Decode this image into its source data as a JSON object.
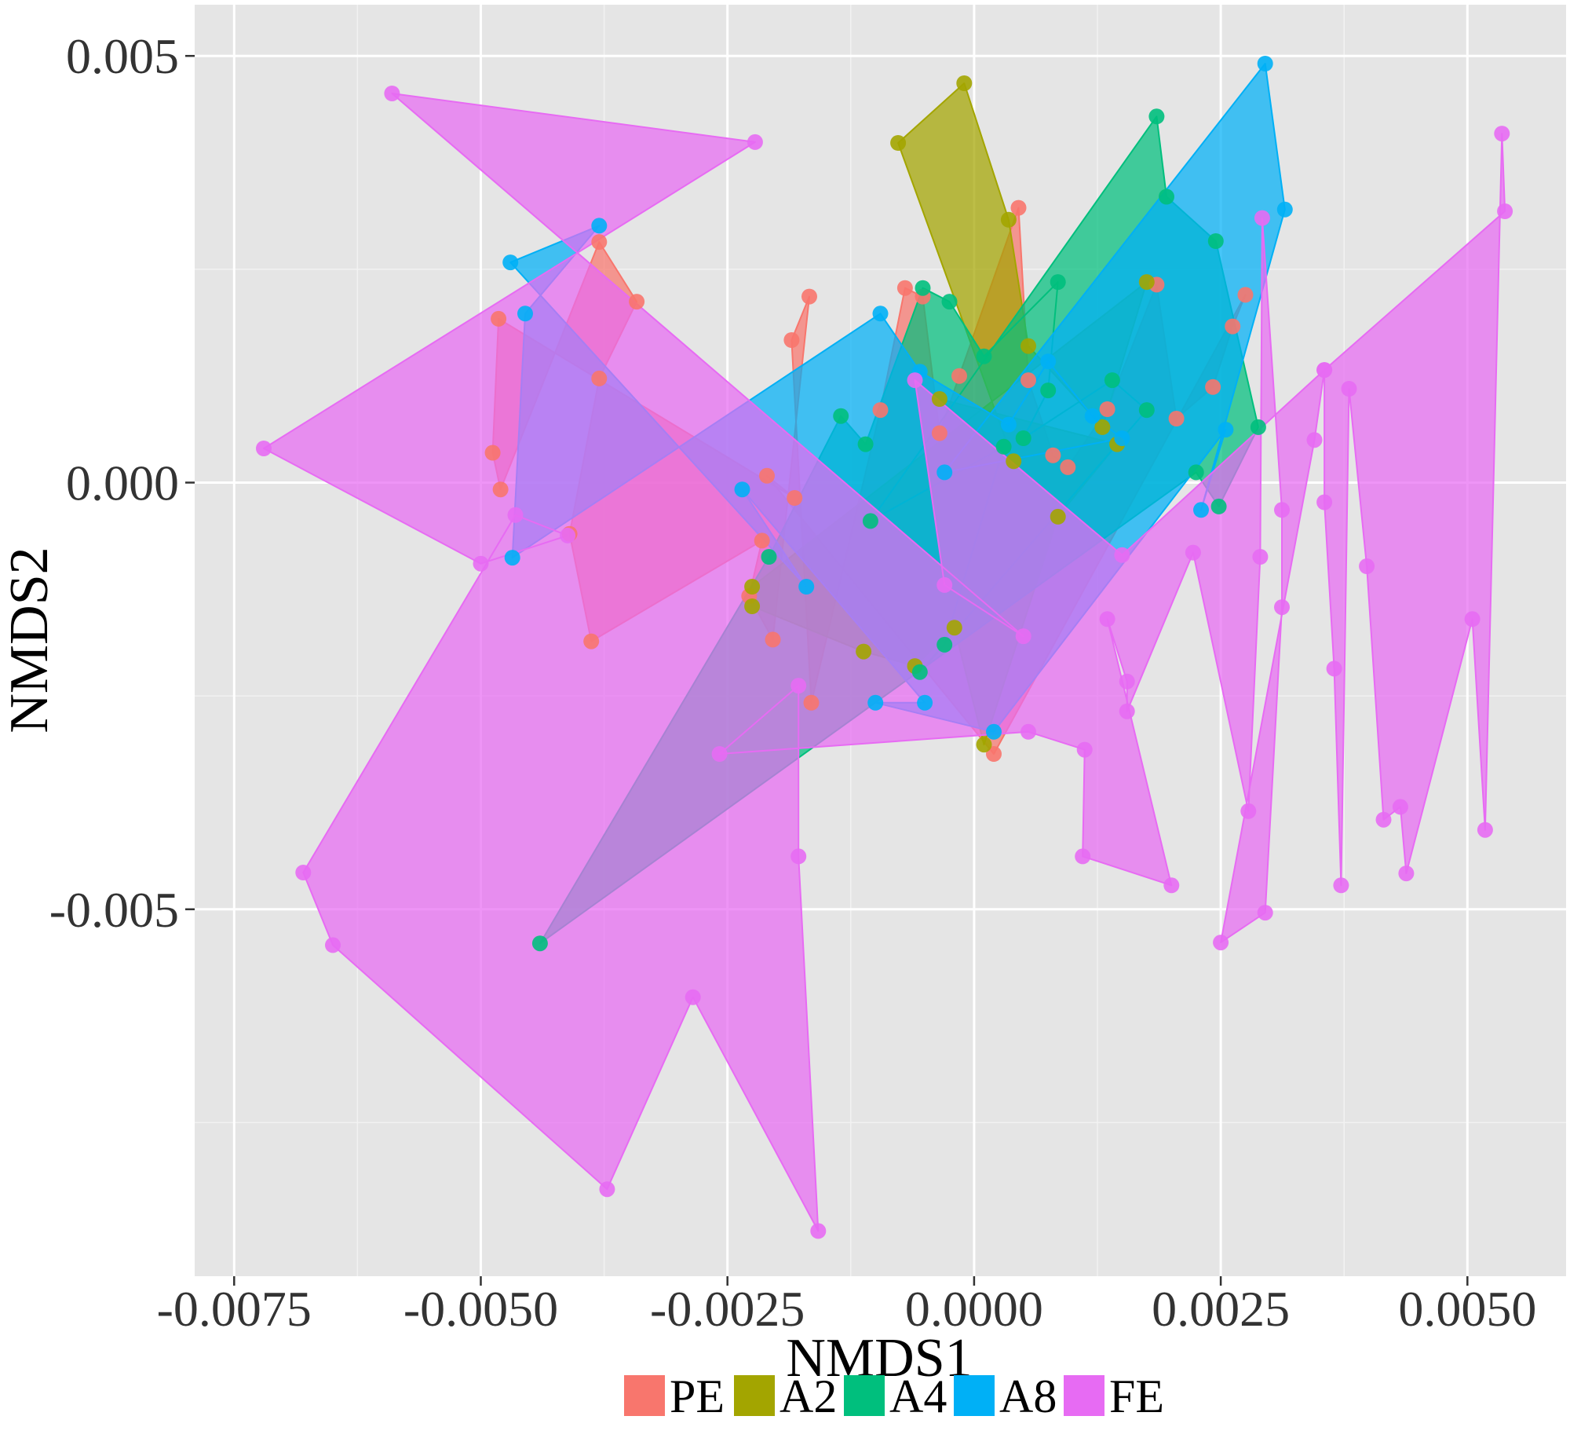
{
  "chart_data": {
    "type": "scatter",
    "subtype": "nmds-ordination-polygons",
    "xlabel": "NMDS1",
    "ylabel": "NMDS2",
    "xlim": [
      -0.0079,
      0.006
    ],
    "ylim": [
      -0.0093,
      0.0056
    ],
    "x_ticks": [
      -0.0075,
      -0.005,
      -0.0025,
      0.0,
      0.0025,
      0.005
    ],
    "x_tick_labels": [
      "-0.0075",
      "-0.0050",
      "-0.0025",
      "0.0000",
      "0.0025",
      "0.0050"
    ],
    "y_ticks": [
      -0.005,
      0.0,
      0.005
    ],
    "y_tick_labels": [
      "-0.005",
      "0.000",
      "0.005"
    ],
    "grid": true,
    "background": "#e5e5e5",
    "legend_position": "bottom",
    "series": [
      {
        "name": "PE",
        "color": "#F8766D",
        "points": [
          [
            -0.00482,
            0.00192
          ],
          [
            -0.00488,
            0.00035
          ],
          [
            -0.0048,
            -8e-05
          ],
          [
            -0.0038,
            0.00282
          ],
          [
            -0.00342,
            0.00212
          ],
          [
            -0.0038,
            0.00122
          ],
          [
            -0.0041,
            -0.0006
          ],
          [
            -0.00388,
            -0.00186
          ],
          [
            -0.00215,
            -0.00068
          ],
          [
            -0.00228,
            -0.00133
          ],
          [
            -0.00204,
            -0.00184
          ],
          [
            -0.00167,
            0.00218
          ],
          [
            -0.00185,
            0.00167
          ],
          [
            -0.00165,
            -0.00258
          ],
          [
            -0.00095,
            0.00085
          ],
          [
            -0.0007,
            0.00228
          ],
          [
            -0.00052,
            0.00218
          ],
          [
            -0.00035,
            0.00058
          ],
          [
            -0.00015,
            0.00125
          ],
          [
            0.00045,
            0.00322
          ],
          [
            0.00055,
            0.0012
          ],
          [
            0.0008,
            0.00032
          ],
          [
            0.00095,
            0.00018
          ],
          [
            0.00135,
            0.00086
          ],
          [
            0.00185,
            0.00232
          ],
          [
            0.00205,
            0.00075
          ],
          [
            0.00242,
            0.00112
          ],
          [
            0.00262,
            0.00183
          ],
          [
            0.00275,
            0.0022
          ],
          [
            0.0002,
            -0.00318
          ],
          [
            -0.0021,
            8e-05
          ],
          [
            -0.00182,
            -0.00018
          ]
        ]
      },
      {
        "name": "A2",
        "color": "#A3A500",
        "points": [
          [
            -0.00077,
            0.00398
          ],
          [
            -0.0001,
            0.00468
          ],
          [
            0.00035,
            0.00308
          ],
          [
            0.00055,
            0.0016
          ],
          [
            0.0013,
            0.00065
          ],
          [
            0.00175,
            0.00235
          ],
          [
            -0.00225,
            -0.00122
          ],
          [
            -0.00225,
            -0.00145
          ],
          [
            -0.00112,
            -0.00198
          ],
          [
            -0.0006,
            -0.00215
          ],
          [
            -0.0002,
            -0.0017
          ],
          [
            0.0001,
            -0.00307
          ],
          [
            0.00085,
            -0.0004
          ],
          [
            0.00145,
            0.00045
          ],
          [
            -0.00035,
            0.00098
          ],
          [
            0.0004,
            0.00025
          ]
        ]
      },
      {
        "name": "A4",
        "color": "#00BF7D",
        "points": [
          [
            0.00185,
            0.00429
          ],
          [
            0.00195,
            0.00335
          ],
          [
            0.00245,
            0.00283
          ],
          [
            0.00288,
            0.00065
          ],
          [
            0.00248,
            -0.00028
          ],
          [
            0.00225,
            0.00012
          ],
          [
            -0.0044,
            -0.0054
          ],
          [
            -0.00208,
            -0.00087
          ],
          [
            -0.00135,
            0.00078
          ],
          [
            -0.0011,
            0.00045
          ],
          [
            -0.00052,
            0.00228
          ],
          [
            -0.00025,
            0.00212
          ],
          [
            0.0001,
            0.00148
          ],
          [
            0.00085,
            0.00235
          ],
          [
            0.00075,
            0.00108
          ],
          [
            0.0005,
            0.00052
          ],
          [
            0.0014,
            0.0012
          ],
          [
            0.00175,
            0.00085
          ],
          [
            -0.00055,
            -0.00222
          ],
          [
            -0.0003,
            -0.0019
          ],
          [
            0.0003,
            0.00042
          ],
          [
            -0.00105,
            -0.00045
          ]
        ]
      },
      {
        "name": "A8",
        "color": "#00B0F6",
        "points": [
          [
            0.00295,
            0.00491
          ],
          [
            0.00315,
            0.0032
          ],
          [
            0.0023,
            -0.00032
          ],
          [
            0.00255,
            0.00062
          ],
          [
            0.0002,
            -0.00292
          ],
          [
            -0.001,
            -0.00258
          ],
          [
            -0.0005,
            -0.00258
          ],
          [
            -0.00235,
            -8e-05
          ],
          [
            -0.0017,
            -0.00122
          ],
          [
            -0.0047,
            0.00258
          ],
          [
            -0.0038,
            0.00301
          ],
          [
            -0.00455,
            0.00198
          ],
          [
            -0.00468,
            -0.00088
          ],
          [
            -0.00095,
            0.00198
          ],
          [
            -0.00055,
            0.0013
          ],
          [
            0.00035,
            0.00068
          ],
          [
            0.00075,
            0.00142
          ],
          [
            0.0012,
            0.00078
          ],
          [
            0.0015,
            0.00052
          ],
          [
            -0.0003,
            0.00012
          ]
        ]
      },
      {
        "name": "FE",
        "color": "#E76BF3",
        "points": [
          [
            -0.0059,
            0.00456
          ],
          [
            -0.00222,
            0.00399
          ],
          [
            -0.0072,
            0.0004
          ],
          [
            -0.005,
            -0.00095
          ],
          [
            -0.00412,
            -0.00062
          ],
          [
            -0.00465,
            -0.00038
          ],
          [
            -0.0068,
            -0.00457
          ],
          [
            -0.0065,
            -0.00542
          ],
          [
            -0.00372,
            -0.00828
          ],
          [
            -0.00285,
            -0.00603
          ],
          [
            -0.00158,
            -0.00877
          ],
          [
            -0.00178,
            -0.00438
          ],
          [
            -0.00178,
            -0.00238
          ],
          [
            -0.00258,
            -0.00318
          ],
          [
            0.00055,
            -0.00292
          ],
          [
            0.00112,
            -0.00313
          ],
          [
            0.0011,
            -0.00438
          ],
          [
            0.002,
            -0.00472
          ],
          [
            0.00135,
            -0.0016
          ],
          [
            0.00155,
            -0.00233
          ],
          [
            0.00155,
            -0.00268
          ],
          [
            0.00222,
            -0.00082
          ],
          [
            0.00278,
            -0.00385
          ],
          [
            0.0029,
            -0.00087
          ],
          [
            0.00292,
            0.0031
          ],
          [
            0.00312,
            -0.00032
          ],
          [
            0.00312,
            -0.00146
          ],
          [
            0.00295,
            -0.00504
          ],
          [
            0.0025,
            -0.00539
          ],
          [
            0.00345,
            0.0005
          ],
          [
            0.00355,
            0.00132
          ],
          [
            0.00355,
            -0.00023
          ],
          [
            0.00365,
            -0.00218
          ],
          [
            0.00372,
            -0.00472
          ],
          [
            0.0038,
            0.0011
          ],
          [
            0.00398,
            -0.00098
          ],
          [
            0.00415,
            -0.00395
          ],
          [
            0.00432,
            -0.0038
          ],
          [
            0.00438,
            -0.00458
          ],
          [
            0.00505,
            -0.0016
          ],
          [
            0.00518,
            -0.00407
          ],
          [
            0.00535,
            0.00409
          ],
          [
            0.00538,
            0.00318
          ],
          [
            0.00355,
            0.00132
          ],
          [
            0.0015,
            -0.00085
          ],
          [
            -0.0006,
            0.0012
          ],
          [
            -0.0003,
            -0.0012
          ],
          [
            0.0005,
            -0.0018
          ]
        ]
      }
    ]
  },
  "legend": {
    "items": [
      {
        "label": "PE",
        "color": "#F8766D"
      },
      {
        "label": "A2",
        "color": "#A3A500"
      },
      {
        "label": "A4",
        "color": "#00BF7D"
      },
      {
        "label": "A8",
        "color": "#00B0F6"
      },
      {
        "label": "FE",
        "color": "#E76BF3"
      }
    ]
  }
}
